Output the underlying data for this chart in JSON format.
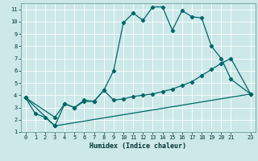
{
  "xlabel": "Humidex (Indice chaleur)",
  "bg_color": "#cce8e8",
  "grid_color": "#ffffff",
  "line_color": "#006666",
  "xlim": [
    -0.5,
    23.5
  ],
  "ylim": [
    1,
    11.5
  ],
  "xticks": [
    0,
    1,
    2,
    3,
    4,
    5,
    6,
    7,
    8,
    9,
    10,
    11,
    12,
    13,
    14,
    15,
    16,
    17,
    18,
    19,
    20,
    21,
    23
  ],
  "yticks": [
    1,
    2,
    3,
    4,
    5,
    6,
    7,
    8,
    9,
    10,
    11
  ],
  "line1_x": [
    0,
    1,
    2,
    3,
    4,
    5,
    6,
    7,
    8,
    9,
    10,
    11,
    12,
    13,
    14,
    15,
    16,
    17,
    18,
    19,
    20,
    21,
    23
  ],
  "line1_y": [
    3.8,
    2.5,
    2.2,
    1.5,
    3.3,
    3.0,
    3.6,
    3.5,
    4.4,
    6.0,
    9.9,
    10.7,
    10.1,
    11.2,
    11.2,
    9.3,
    10.9,
    10.4,
    10.3,
    8.0,
    7.0,
    5.3,
    4.1
  ],
  "line2_x": [
    0,
    3,
    4,
    5,
    6,
    7,
    8,
    9,
    10,
    11,
    12,
    13,
    14,
    15,
    16,
    17,
    18,
    19,
    20,
    21,
    23
  ],
  "line2_y": [
    3.8,
    2.2,
    3.3,
    3.0,
    3.5,
    3.5,
    4.4,
    3.6,
    3.7,
    3.9,
    4.0,
    4.1,
    4.3,
    4.5,
    4.8,
    5.1,
    5.6,
    6.1,
    6.6,
    7.0,
    4.1
  ],
  "line3_x": [
    0,
    3,
    23
  ],
  "line3_y": [
    3.8,
    1.5,
    4.1
  ]
}
